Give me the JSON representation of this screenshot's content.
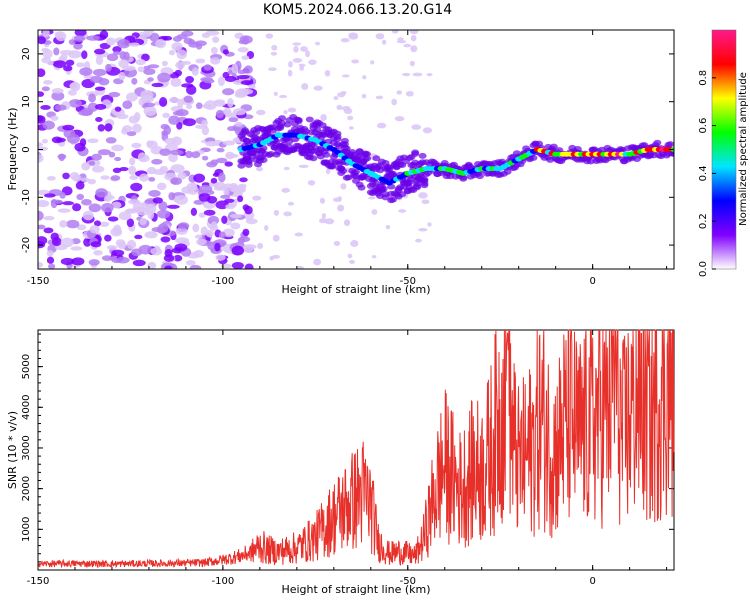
{
  "title": "KOM5.2024.066.13.20.G14",
  "chart_data": [
    {
      "type": "heatmap",
      "xlabel": "Height of straight line (km)",
      "ylabel": "Frequency (Hz)",
      "xlim": [
        -150,
        22
      ],
      "ylim": [
        -25,
        25
      ],
      "xticks": [
        -150,
        -100,
        -50,
        0
      ],
      "yticks": [
        -20,
        -10,
        0,
        10,
        20
      ],
      "colorbar": {
        "label": "Normalized spectral amplitude",
        "range": [
          0,
          1
        ],
        "ticks": [
          "0.0",
          "0.2",
          "0.4",
          "0.6",
          "0.8"
        ],
        "colormap": "rainbow",
        "colors": [
          "#ffffff",
          "#8000ff",
          "#0000ff",
          "#00e5ff",
          "#00ff00",
          "#ffff00",
          "#ff0000",
          "#ff1a8c"
        ]
      },
      "ridge": {
        "x": [
          -95,
          -90,
          -85,
          -80,
          -75,
          -70,
          -65,
          -60,
          -55,
          -50,
          -45,
          -40,
          -35,
          -30,
          -25,
          -20,
          -15,
          -10,
          -5,
          0,
          5,
          10,
          15,
          20,
          22
        ],
        "frequency": [
          0,
          1,
          3,
          3,
          2,
          0,
          -3,
          -5,
          -7,
          -5,
          -4,
          -4,
          -5,
          -4,
          -4,
          -2,
          0,
          -1,
          -1,
          -1,
          -1,
          -1,
          0,
          0,
          0
        ]
      }
    },
    {
      "type": "line",
      "xlabel": "Height of straight line (km)",
      "ylabel": "SNR (10 * v/v)",
      "xlim": [
        -150,
        22
      ],
      "ylim": [
        0,
        5900
      ],
      "xticks": [
        -150,
        -100,
        -50,
        0
      ],
      "yticks": [
        1000,
        2000,
        3000,
        4000,
        5000
      ],
      "series": [
        {
          "color": "#e8302a",
          "x": [
            -150,
            -140,
            -130,
            -120,
            -110,
            -105,
            -100,
            -95,
            -92,
            -90,
            -88,
            -85,
            -80,
            -75,
            -70,
            -65,
            -62,
            -60,
            -58,
            -55,
            -52,
            -50,
            -48,
            -46,
            -44,
            -42,
            -40,
            -38,
            -36,
            -34,
            -32,
            -30,
            -28,
            -26,
            -24,
            -23,
            -22,
            -20,
            -18,
            -16,
            -14,
            -12,
            -10,
            -8,
            -6,
            -4,
            -2,
            0,
            2,
            4,
            6,
            8,
            10,
            12,
            14,
            16,
            18,
            20,
            22
          ],
          "values": [
            150,
            160,
            150,
            160,
            170,
            180,
            250,
            350,
            450,
            600,
            500,
            450,
            550,
            800,
            1300,
            1700,
            1900,
            1600,
            700,
            400,
            450,
            400,
            350,
            700,
            1400,
            2100,
            2600,
            2300,
            2000,
            2200,
            2500,
            2400,
            2800,
            3500,
            4300,
            5900,
            3400,
            2600,
            2800,
            3100,
            3800,
            3200,
            2900,
            3500,
            3700,
            3300,
            3500,
            3600,
            4000,
            3800,
            5300,
            3200,
            3800,
            4500,
            4200,
            3700,
            4500,
            4600,
            4400
          ]
        }
      ]
    }
  ]
}
